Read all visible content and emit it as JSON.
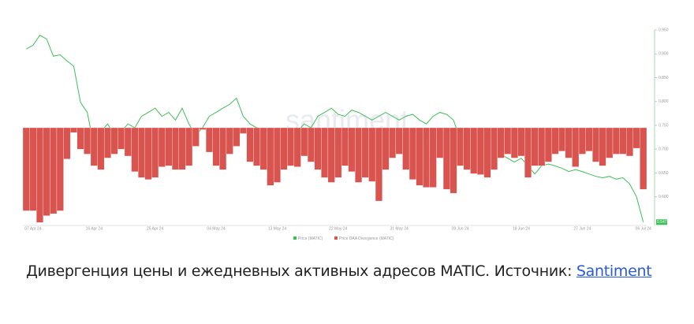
{
  "chart_data": {
    "type": "bar_line",
    "watermark": "santiment",
    "categories": [
      null,
      "07 Apr 24",
      null,
      null,
      null,
      null,
      null,
      null,
      null,
      null,
      "16 Apr 24",
      null,
      null,
      null,
      null,
      null,
      null,
      null,
      null,
      "25 Apr 24",
      null,
      null,
      null,
      null,
      null,
      null,
      null,
      null,
      "04 May 24",
      null,
      null,
      null,
      null,
      null,
      null,
      null,
      null,
      "13 May 24",
      null,
      null,
      null,
      null,
      null,
      null,
      null,
      null,
      "22 May 24",
      null,
      null,
      null,
      null,
      null,
      null,
      null,
      null,
      "31 May 24",
      null,
      null,
      null,
      null,
      null,
      null,
      null,
      null,
      "09 Jun 24",
      null,
      null,
      null,
      null,
      null,
      null,
      null,
      null,
      "18 Jun 24",
      null,
      null,
      null,
      null,
      null,
      null,
      null,
      null,
      "27 Jun 24",
      null,
      null,
      null,
      null,
      null,
      null,
      null,
      null,
      "06 Jul 24"
    ],
    "series": [
      {
        "name": "Price (MATIC)",
        "color": "#3cbf55",
        "axis": "y",
        "values": [
          0.91,
          0.918,
          0.939,
          0.931,
          0.895,
          0.898,
          0.885,
          0.874,
          0.798,
          0.777,
          0.705,
          0.737,
          0.753,
          0.729,
          0.737,
          0.753,
          0.745,
          0.769,
          0.777,
          0.786,
          0.769,
          0.777,
          0.761,
          0.786,
          0.753,
          0.729,
          0.745,
          0.769,
          0.777,
          0.786,
          0.794,
          0.807,
          0.769,
          0.753,
          0.745,
          0.74,
          0.737,
          0.729,
          0.724,
          0.721,
          0.737,
          0.753,
          0.745,
          0.769,
          0.777,
          0.786,
          0.773,
          0.769,
          0.782,
          0.777,
          0.769,
          0.761,
          0.769,
          0.777,
          0.769,
          0.761,
          0.769,
          0.773,
          0.761,
          0.753,
          0.769,
          0.777,
          0.773,
          0.761,
          0.721,
          0.713,
          0.708,
          0.705,
          0.713,
          0.697,
          0.689,
          0.681,
          0.673,
          0.681,
          0.665,
          0.648,
          0.665,
          0.669,
          0.665,
          0.66,
          0.653,
          0.657,
          0.653,
          0.648,
          0.643,
          0.64,
          0.643,
          0.637,
          0.64,
          0.627,
          0.6,
          0.547
        ]
      },
      {
        "name": "Price DAA Divergence (MATIC)",
        "color": "#d9534f",
        "axis": "y2",
        "values": [
          -0.85,
          -0.85,
          -0.97,
          -0.9,
          -0.88,
          -0.85,
          -0.32,
          -0.05,
          -0.22,
          -0.27,
          -0.39,
          -0.43,
          -0.31,
          -0.27,
          -0.22,
          -0.29,
          -0.45,
          -0.51,
          -0.53,
          -0.51,
          -0.4,
          -0.39,
          -0.43,
          -0.43,
          -0.39,
          -0.19,
          -0.02,
          -0.25,
          -0.39,
          -0.43,
          -0.27,
          -0.19,
          -0.06,
          -0.35,
          -0.39,
          -0.43,
          -0.59,
          -0.56,
          -0.43,
          -0.39,
          -0.4,
          -0.29,
          -0.35,
          -0.43,
          -0.51,
          -0.56,
          -0.51,
          -0.39,
          -0.45,
          -0.56,
          -0.51,
          -0.55,
          -0.75,
          -0.43,
          -0.31,
          -0.27,
          -0.43,
          -0.53,
          -0.59,
          -0.61,
          -0.61,
          -0.31,
          -0.63,
          -0.67,
          -0.39,
          -0.43,
          -0.47,
          -0.48,
          -0.51,
          -0.43,
          -0.31,
          -0.27,
          -0.31,
          -0.29,
          -0.51,
          -0.39,
          -0.39,
          -0.35,
          -0.27,
          -0.24,
          -0.31,
          -0.4,
          -0.27,
          -0.24,
          -0.35,
          -0.39,
          -0.31,
          -0.27,
          -0.27,
          -0.29,
          -0.21,
          -0.63
        ]
      }
    ],
    "ylim": [
      0.54,
      0.95
    ],
    "yticks": [
      {
        "value": 0.95,
        "label": "0.950"
      },
      {
        "value": 0.9,
        "label": "0.900"
      },
      {
        "value": 0.85,
        "label": "0.850"
      },
      {
        "value": 0.8,
        "label": "0.800"
      },
      {
        "value": 0.75,
        "label": "0.750"
      },
      {
        "value": 0.7,
        "label": "0.700"
      },
      {
        "value": 0.65,
        "label": "0.650"
      },
      {
        "value": 0.6,
        "label": "0.600"
      }
    ],
    "y2lim": [
      -1,
      1
    ]
  },
  "caption": {
    "text": "Дивергенция цены и ежедневных активных адресов MATIC. Источник: ",
    "link": "Santiment"
  }
}
